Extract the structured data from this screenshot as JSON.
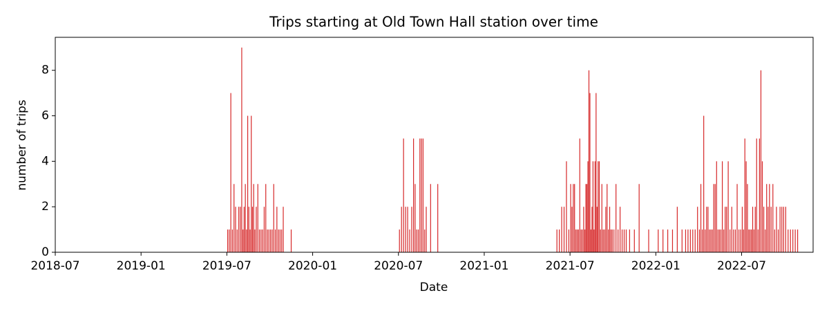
{
  "chart_data": {
    "type": "bar",
    "title": "Trips starting at Old Town Hall station over time",
    "xlabel": "Date",
    "ylabel": "number of trips",
    "color": "#d62728",
    "xlim": [
      "2018-07",
      "2022-12"
    ],
    "xticks": [
      "2018-07",
      "2019-01",
      "2019-07",
      "2020-01",
      "2020-07",
      "2021-01",
      "2021-07",
      "2022-01",
      "2022-07"
    ],
    "ylim": [
      0,
      9.45
    ],
    "yticks": [
      0,
      2,
      4,
      6,
      8
    ],
    "x": [
      "2019-07",
      "2019-07",
      "2019-07",
      "2019-07",
      "2019-07",
      "2019-07",
      "2019-07",
      "2019-07",
      "2019-07",
      "2019-08",
      "2019-08",
      "2019-08",
      "2019-08",
      "2019-08",
      "2019-08",
      "2019-08",
      "2019-08",
      "2019-08",
      "2019-08",
      "2019-08",
      "2019-08",
      "2019-09",
      "2019-09",
      "2019-09",
      "2019-09",
      "2019-09",
      "2019-09",
      "2019-09",
      "2019-09",
      "2019-09",
      "2019-10",
      "2019-10",
      "2019-10",
      "2019-10",
      "2019-10",
      "2019-10",
      "2019-10",
      "2019-10",
      "2019-10",
      "2019-11",
      "2020-07",
      "2020-07",
      "2020-07",
      "2020-07",
      "2020-07",
      "2020-07",
      "2020-07",
      "2020-08",
      "2020-08",
      "2020-08",
      "2020-08",
      "2020-08",
      "2020-08",
      "2020-08",
      "2020-08",
      "2020-08",
      "2020-09",
      "2020-09",
      "2021-06",
      "2021-06",
      "2021-06",
      "2021-06",
      "2021-06",
      "2021-06",
      "2021-07",
      "2021-07",
      "2021-07",
      "2021-07",
      "2021-07",
      "2021-07",
      "2021-07",
      "2021-07",
      "2021-07",
      "2021-07",
      "2021-07",
      "2021-08",
      "2021-08",
      "2021-08",
      "2021-08",
      "2021-08",
      "2021-08",
      "2021-08",
      "2021-08",
      "2021-08",
      "2021-08",
      "2021-08",
      "2021-08",
      "2021-08",
      "2021-08",
      "2021-09",
      "2021-09",
      "2021-09",
      "2021-09",
      "2021-09",
      "2021-09",
      "2021-09",
      "2021-09",
      "2021-09",
      "2021-09",
      "2021-09",
      "2021-10",
      "2021-10",
      "2021-10",
      "2021-10",
      "2021-10",
      "2021-10",
      "2021-10",
      "2021-11",
      "2021-11",
      "2021-11",
      "2021-12",
      "2022-01",
      "2022-01",
      "2022-01",
      "2022-02",
      "2022-02",
      "2022-02",
      "2022-03",
      "2022-03",
      "2022-03",
      "2022-03",
      "2022-03",
      "2022-03",
      "2022-04",
      "2022-04",
      "2022-04",
      "2022-04",
      "2022-04",
      "2022-04",
      "2022-04",
      "2022-04",
      "2022-04",
      "2022-04",
      "2022-05",
      "2022-05",
      "2022-05",
      "2022-05",
      "2022-05",
      "2022-05",
      "2022-05",
      "2022-05",
      "2022-05",
      "2022-05",
      "2022-06",
      "2022-06",
      "2022-06",
      "2022-06",
      "2022-06",
      "2022-06",
      "2022-06",
      "2022-06",
      "2022-07",
      "2022-07",
      "2022-07",
      "2022-07",
      "2022-07",
      "2022-07",
      "2022-07",
      "2022-07",
      "2022-07",
      "2022-07",
      "2022-07",
      "2022-08",
      "2022-08",
      "2022-08",
      "2022-08",
      "2022-08",
      "2022-08",
      "2022-08",
      "2022-08",
      "2022-08",
      "2022-08",
      "2022-09",
      "2022-09",
      "2022-09",
      "2022-09",
      "2022-09",
      "2022-09",
      "2022-09",
      "2022-09",
      "2022-10",
      "2022-10",
      "2022-10",
      "2022-10",
      "2022-10",
      "2022-10"
    ],
    "values": [
      1,
      1,
      7,
      1,
      3,
      2,
      1,
      2,
      2,
      9,
      1,
      2,
      3,
      1,
      6,
      2,
      1,
      6,
      2,
      3,
      1,
      2,
      3,
      1,
      1,
      1,
      2,
      3,
      1,
      1,
      1,
      1,
      3,
      1,
      2,
      1,
      1,
      1,
      2,
      1,
      1,
      2,
      5,
      2,
      2,
      1,
      2,
      5,
      3,
      1,
      1,
      5,
      5,
      5,
      1,
      2,
      3,
      3,
      1,
      1,
      2,
      2,
      4,
      1,
      3,
      2,
      3,
      3,
      1,
      1,
      1,
      5,
      1,
      1,
      2,
      1,
      3,
      3,
      4,
      8,
      7,
      1,
      2,
      4,
      1,
      4,
      7,
      2,
      4,
      4,
      1,
      3,
      1,
      1,
      2,
      3,
      1,
      2,
      1,
      1,
      1,
      3,
      1,
      2,
      1,
      1,
      1,
      1,
      1,
      3,
      1,
      1,
      1,
      1,
      1,
      2,
      1,
      1,
      1,
      1,
      1,
      1,
      2,
      1,
      3,
      1,
      6,
      1,
      2,
      2,
      1,
      1,
      1,
      3,
      3,
      4,
      1,
      1,
      1,
      4,
      1,
      2,
      2,
      4,
      1,
      2,
      1,
      1,
      3,
      1,
      1,
      2,
      1,
      5,
      4,
      3,
      1,
      1,
      1,
      2,
      1,
      2,
      5,
      1,
      5,
      8,
      4,
      2,
      1,
      3,
      2,
      3,
      2,
      3,
      1,
      2,
      1,
      2,
      2,
      2,
      2,
      1,
      1,
      1,
      1,
      1
    ]
  }
}
